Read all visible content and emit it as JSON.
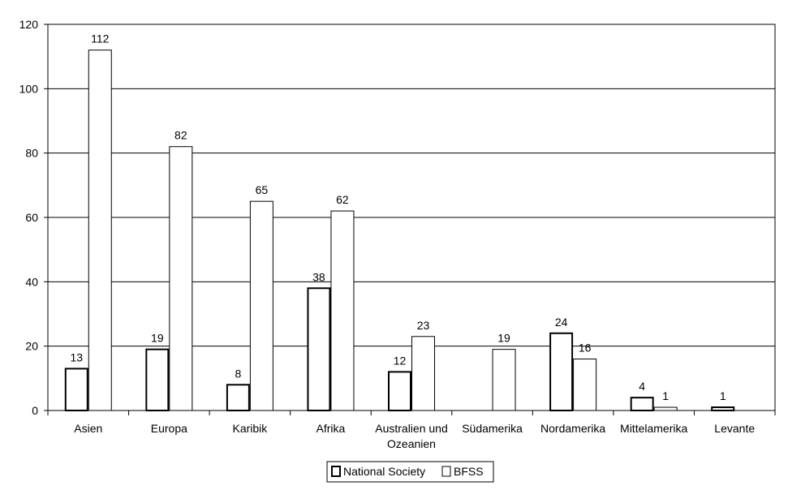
{
  "chart_data": {
    "type": "bar",
    "categories": [
      "Asien",
      "Europa",
      "Karibik",
      "Afrika",
      "Australien und Ozeanien",
      "Südamerika",
      "Nordamerika",
      "Mittelamerika",
      "Levante"
    ],
    "category_lines": [
      [
        "Asien"
      ],
      [
        "Europa"
      ],
      [
        "Karibik"
      ],
      [
        "Afrika"
      ],
      [
        "Australien und",
        "Ozeanien"
      ],
      [
        "Südamerika"
      ],
      [
        "Nordamerika"
      ],
      [
        "Mittelamerika"
      ],
      [
        "Levante"
      ]
    ],
    "series": [
      {
        "name": "National Society",
        "values": [
          13,
          19,
          8,
          38,
          12,
          null,
          24,
          4,
          1
        ],
        "style": "bold-outline"
      },
      {
        "name": "BFSS",
        "values": [
          112,
          82,
          65,
          62,
          23,
          19,
          16,
          1,
          null
        ],
        "style": "thin-outline"
      }
    ],
    "ylim": [
      0,
      120
    ],
    "yticks": [
      0,
      20,
      40,
      60,
      80,
      100,
      120
    ],
    "grid": true,
    "legend_position": "bottom-center",
    "colors": {
      "bar_fill": "#ffffff",
      "stroke": "#000000",
      "background": "#ffffff"
    }
  }
}
